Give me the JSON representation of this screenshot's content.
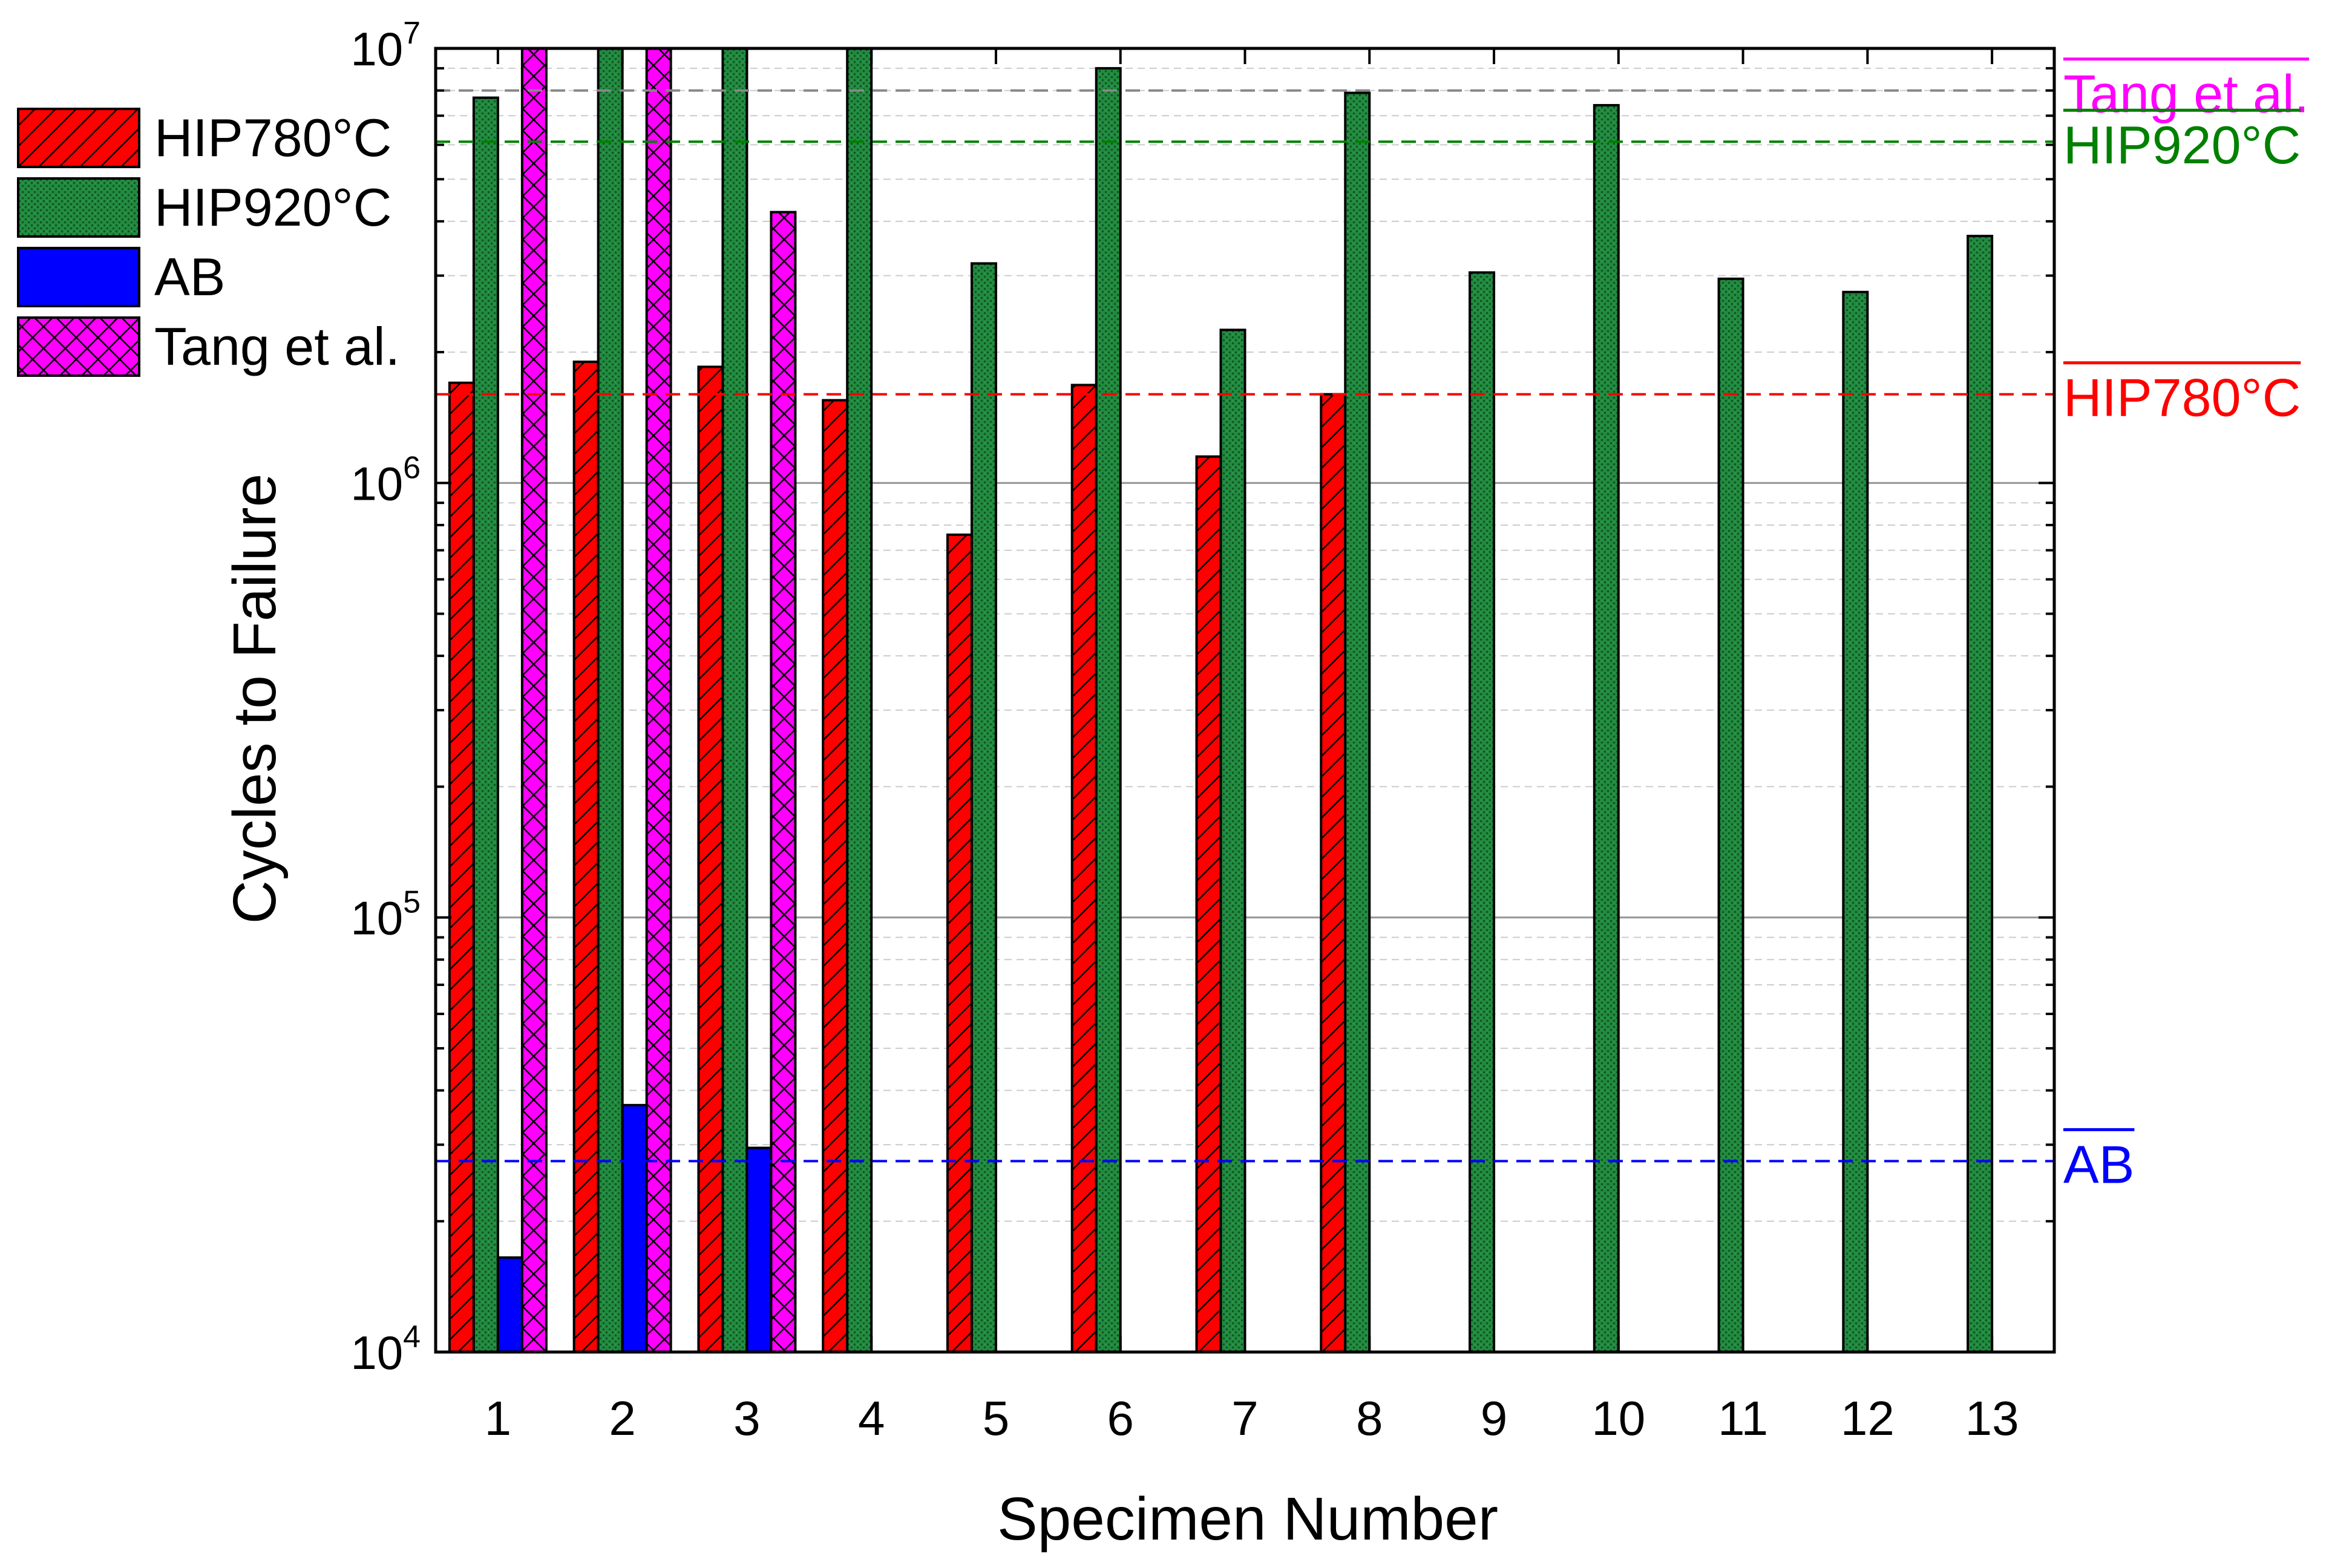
{
  "chart_data": {
    "type": "bar",
    "yscale": "log",
    "xlabel": "Specimen Number",
    "ylabel": "Cycles to Failure",
    "ylim": [
      10000,
      10000000
    ],
    "y_ticks": [
      {
        "base": "10",
        "exp": "4",
        "value": 10000
      },
      {
        "base": "10",
        "exp": "5",
        "value": 100000
      },
      {
        "base": "10",
        "exp": "6",
        "value": 1000000
      },
      {
        "base": "10",
        "exp": "7",
        "value": 10000000
      }
    ],
    "categories": [
      "1",
      "2",
      "3",
      "4",
      "5",
      "6",
      "7",
      "8",
      "9",
      "10",
      "11",
      "12",
      "13"
    ],
    "series": [
      {
        "name": "HIP780°C",
        "color": "#ff0000",
        "pattern": "diagonal-hatch",
        "values": [
          1700000,
          1900000,
          1850000,
          1550000,
          760000,
          1680000,
          1150000,
          1600000,
          null,
          null,
          null,
          null,
          null
        ]
      },
      {
        "name": "HIP920°C",
        "color": "#1e7f3a",
        "pattern": "fine-dot",
        "values": [
          7700000,
          10000000,
          10000000,
          10000000,
          3200000,
          9000000,
          2250000,
          7900000,
          3050000,
          7400000,
          2950000,
          2750000,
          3700000
        ]
      },
      {
        "name": "AB",
        "color": "#0000ff",
        "pattern": "solid",
        "values": [
          16500,
          37000,
          29500,
          null,
          null,
          null,
          null,
          null,
          null,
          null,
          null,
          null,
          null
        ]
      },
      {
        "name": "Tang et al.",
        "color": "#ff00ff",
        "pattern": "cross-hatch",
        "values": [
          10000000,
          10000000,
          4200000,
          null,
          null,
          null,
          null,
          null,
          null,
          null,
          null,
          null,
          null
        ]
      }
    ],
    "reference_lines": [
      {
        "label": "Tang et al.",
        "value": 8000000,
        "line_color": "#888888",
        "label_color": "#ff00ff"
      },
      {
        "label": "HIP920°C",
        "value": 6100000,
        "line_color": "#008000",
        "label_color": "#008000"
      },
      {
        "label": "HIP780°C",
        "value": 1600000,
        "line_color": "#ff0000",
        "label_color": "#ff0000"
      },
      {
        "label": "AB",
        "value": 27500,
        "line_color": "#0000ff",
        "label_color": "#0000ff"
      }
    ],
    "legend_position": "top-left, outside plot",
    "grid": "major solid gray, minor dashed light gray (y only)"
  }
}
